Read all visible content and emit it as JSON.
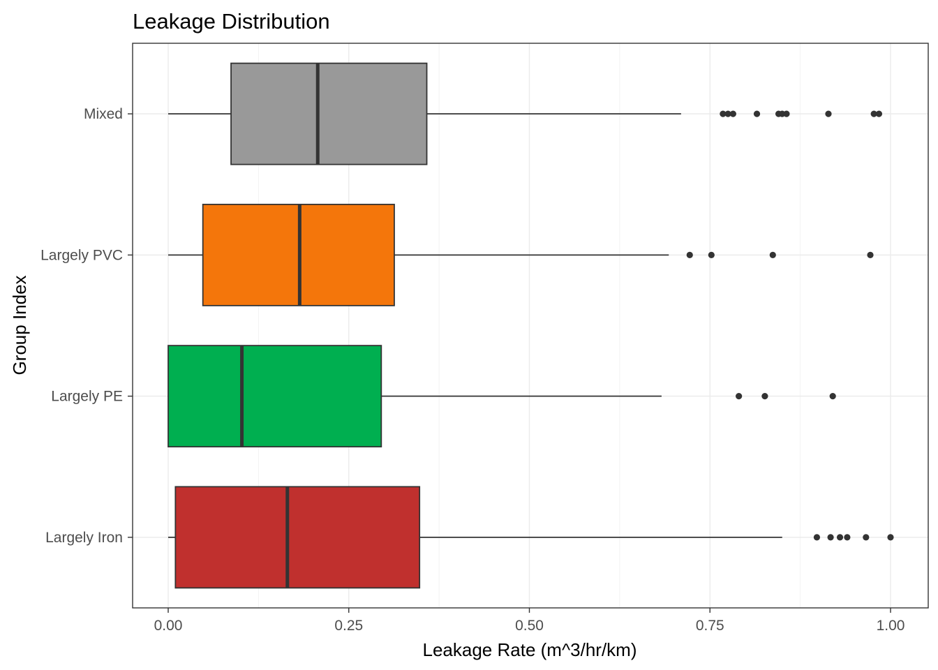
{
  "chart_data": {
    "type": "boxplot",
    "orientation": "horizontal",
    "title": "Leakage Distribution",
    "xlabel": "Leakage Rate (m^3/hr/km)",
    "ylabel": "Group Index",
    "xlim": [
      -0.1,
      1.05
    ],
    "x_ticks": [
      0,
      0.25,
      0.5,
      0.75,
      1.0
    ],
    "x_tick_labels": [
      "0.00",
      "0.25",
      "0.50",
      "0.75",
      "1.00"
    ],
    "grid": true,
    "legend": "none",
    "categories": [
      "Largely Iron",
      "Largely PE",
      "Largely PVC",
      "Mixed"
    ],
    "series": [
      {
        "category": "Largely Iron",
        "color": "#C0302E",
        "whisker_low": 0.0,
        "q1": 0.01,
        "median": 0.165,
        "q3": 0.348,
        "whisker_high": 0.85,
        "outliers": [
          0.898,
          0.917,
          0.93,
          0.94,
          0.966,
          1.0
        ]
      },
      {
        "category": "Largely PE",
        "color": "#00AF50",
        "whisker_low": 0.0,
        "q1": 0.0,
        "median": 0.102,
        "q3": 0.295,
        "whisker_high": 0.683,
        "outliers": [
          0.79,
          0.826,
          0.92
        ]
      },
      {
        "category": "Largely PVC",
        "color": "#F4760B",
        "whisker_low": 0.0,
        "q1": 0.048,
        "median": 0.182,
        "q3": 0.313,
        "whisker_high": 0.693,
        "outliers": [
          0.722,
          0.752,
          0.837,
          0.972
        ]
      },
      {
        "category": "Mixed",
        "color": "#999999",
        "whisker_low": 0.0,
        "q1": 0.087,
        "median": 0.207,
        "q3": 0.358,
        "whisker_high": 0.71,
        "outliers": [
          0.768,
          0.775,
          0.782,
          0.815,
          0.845,
          0.85,
          0.856,
          0.914,
          0.977,
          0.984
        ]
      }
    ]
  }
}
